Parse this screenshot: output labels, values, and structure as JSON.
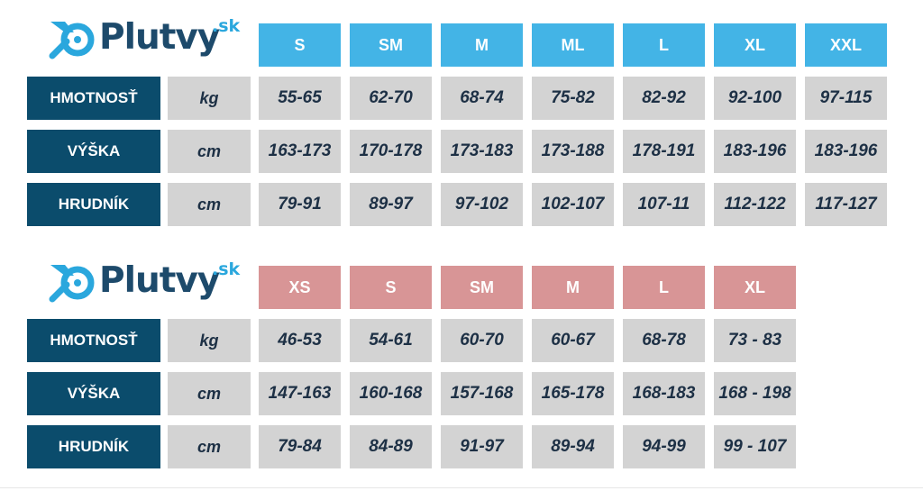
{
  "logo": {
    "text": "Plutvy",
    "tld": ".sk",
    "icon": "fin-logo-icon"
  },
  "colors": {
    "header_blue": "#43b4e6",
    "header_pink": "#d89596",
    "row_label_bg": "#0b4c6c",
    "cell_bg": "#d3d3d3",
    "value_text": "#1d3045",
    "logo_dark": "#1d4a6b",
    "logo_light": "#2aa7dd"
  },
  "tables": [
    {
      "sizes": [
        "S",
        "SM",
        "M",
        "ML",
        "L",
        "XL",
        "XXL"
      ],
      "rows": [
        {
          "label": "HMOTNOSŤ",
          "unit": "kg",
          "values": [
            "55-65",
            "62-70",
            "68-74",
            "75-82",
            "82-92",
            "92-100",
            "97-115"
          ]
        },
        {
          "label": "VÝŠKA",
          "unit": "cm",
          "values": [
            "163-173",
            "170-178",
            "173-183",
            "173-188",
            "178-191",
            "183-196",
            "183-196"
          ]
        },
        {
          "label": "HRUDNÍK",
          "unit": "cm",
          "values": [
            "79-91",
            "89-97",
            "97-102",
            "102-107",
            "107-11",
            "112-122",
            "117-127"
          ]
        }
      ]
    },
    {
      "sizes": [
        "XS",
        "S",
        "SM",
        "M",
        "L",
        "XL"
      ],
      "rows": [
        {
          "label": "HMOTNOSŤ",
          "unit": "kg",
          "values": [
            "46-53",
            "54-61",
            "60-70",
            "60-67",
            "68-78",
            "73 - 83"
          ]
        },
        {
          "label": "VÝŠKA",
          "unit": "cm",
          "values": [
            "147-163",
            "160-168",
            "157-168",
            "165-178",
            "168-183",
            "168 - 198"
          ]
        },
        {
          "label": "HRUDNÍK",
          "unit": "cm",
          "values": [
            "79-84",
            "84-89",
            "91-97",
            "89-94",
            "94-99",
            "99 - 107"
          ]
        }
      ]
    }
  ]
}
